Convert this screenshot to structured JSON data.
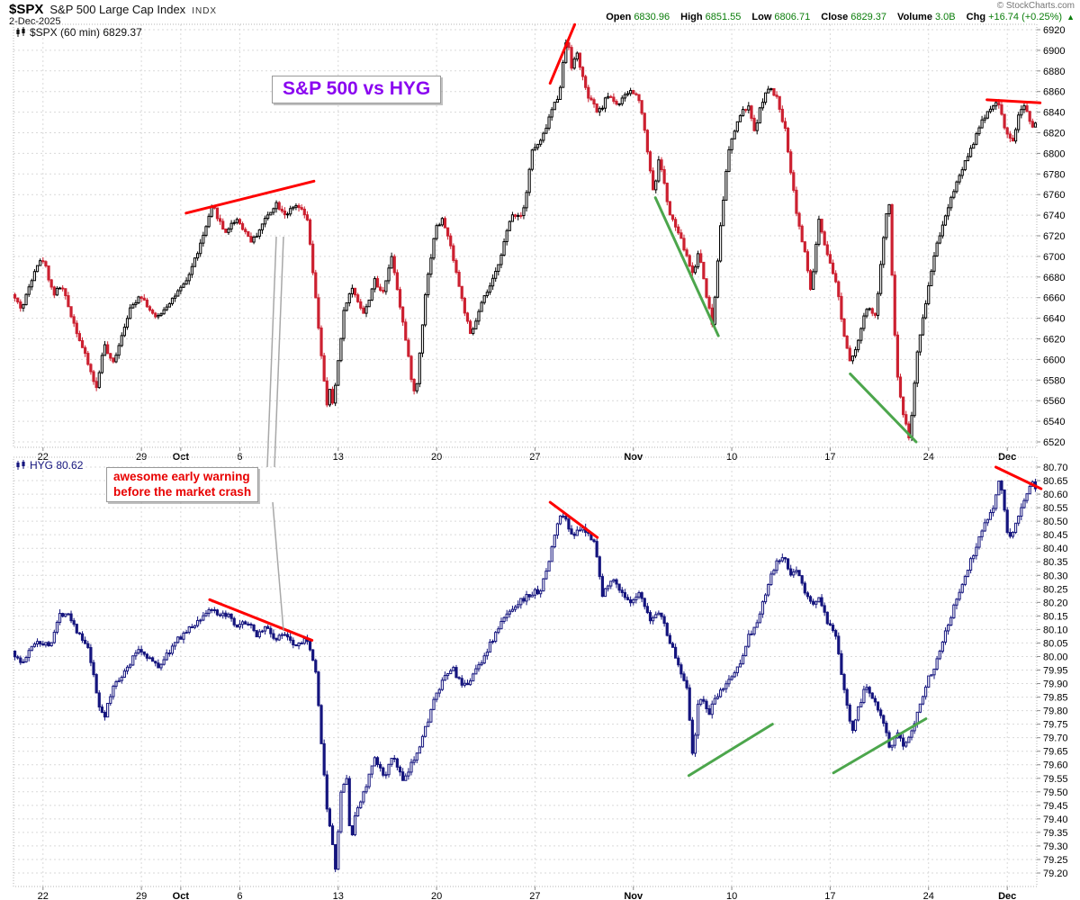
{
  "header": {
    "symbol": "$SPX",
    "name": "S&P 500 Large Cap Index",
    "exchange": "INDX",
    "date": "2-Dec-2025",
    "copyright": "© StockCharts.com",
    "quote": {
      "open_label": "Open",
      "open": "6830.96",
      "high_label": "High",
      "high": "6851.55",
      "low_label": "Low",
      "low": "6806.71",
      "close_label": "Close",
      "close": "6829.37",
      "volume_label": "Volume",
      "volume": "3.0B",
      "chg_label": "Chg",
      "chg": "+16.74 (+0.25%)",
      "arrow": "▲"
    }
  },
  "colors": {
    "spx_up": "#000000",
    "spx_down": "#cc2030",
    "hyg": "#15157e",
    "trend_red": "#fe0000",
    "trend_green": "#4ca64c",
    "grid": "#d9d9d9",
    "panel_border": "#b5b5b5",
    "axis_text": "#000000",
    "leader_gray": "#9a9a9a",
    "quote_value_green": "#0a7d0a",
    "title_purple": "#8a05f0",
    "warning_red": "#e80000"
  },
  "annotations": {
    "title_box": "S&P 500 vs HYG",
    "warning_lines": [
      "awesome early warning",
      "before the market crash"
    ],
    "leader_lines": [
      [
        307,
        263,
        297,
        519
      ],
      [
        315,
        263,
        305,
        519
      ],
      [
        303,
        558,
        315,
        701
      ]
    ]
  },
  "x_ticks": [
    {
      "day": 1,
      "label": "22",
      "bold": false
    },
    {
      "day": 6,
      "label": "29",
      "bold": false
    },
    {
      "day": 8,
      "label": "Oct",
      "bold": true
    },
    {
      "day": 11,
      "label": "6",
      "bold": false
    },
    {
      "day": 16,
      "label": "13",
      "bold": false
    },
    {
      "day": 21,
      "label": "20",
      "bold": false
    },
    {
      "day": 26,
      "label": "27",
      "bold": false
    },
    {
      "day": 31,
      "label": "Nov",
      "bold": true
    },
    {
      "day": 36,
      "label": "10",
      "bold": false
    },
    {
      "day": 41,
      "label": "17",
      "bold": false
    },
    {
      "day": 46,
      "label": "24",
      "bold": false
    },
    {
      "day": 50,
      "label": "Dec",
      "bold": true
    }
  ],
  "chart_data": [
    {
      "panel": "top",
      "type": "candlestick",
      "symbol": "$SPX",
      "label": "$SPX (60 min) 6829.37",
      "timeframe": "60 min",
      "last_close": 6829.37,
      "y_min": 6520,
      "y_max": 6920,
      "y_step": 20,
      "days_total": 52,
      "bars_per_day": 7,
      "path_day_price": [
        [
          0,
          6663
        ],
        [
          0.5,
          6649
        ],
        [
          1.2,
          6691
        ],
        [
          1.6,
          6697
        ],
        [
          2.1,
          6663
        ],
        [
          2.5,
          6672
        ],
        [
          3.2,
          6632
        ],
        [
          4.3,
          6571
        ],
        [
          4.65,
          6616
        ],
        [
          5.1,
          6594
        ],
        [
          5.9,
          6645
        ],
        [
          6.5,
          6664
        ],
        [
          7.3,
          6639
        ],
        [
          8.0,
          6656
        ],
        [
          8.8,
          6673
        ],
        [
          9.6,
          6713
        ],
        [
          10.2,
          6749
        ],
        [
          10.8,
          6723
        ],
        [
          11.4,
          6737
        ],
        [
          12.2,
          6714
        ],
        [
          12.8,
          6734
        ],
        [
          13.4,
          6752
        ],
        [
          13.9,
          6741
        ],
        [
          14.5,
          6749
        ],
        [
          15.0,
          6736
        ],
        [
          15.5,
          6645
        ],
        [
          15.99,
          6553
        ],
        [
          16.15,
          6572
        ],
        [
          16.3,
          6554
        ],
        [
          16.9,
          6653
        ],
        [
          17.3,
          6669
        ],
        [
          17.9,
          6643
        ],
        [
          18.4,
          6677
        ],
        [
          18.8,
          6663
        ],
        [
          19.3,
          6701
        ],
        [
          19.9,
          6631
        ],
        [
          20.35,
          6575
        ],
        [
          20.5,
          6562
        ],
        [
          20.99,
          6663
        ],
        [
          21.5,
          6727
        ],
        [
          21.9,
          6736
        ],
        [
          22.4,
          6701
        ],
        [
          22.8,
          6663
        ],
        [
          23.3,
          6622
        ],
        [
          23.9,
          6656
        ],
        [
          24.5,
          6679
        ],
        [
          25.4,
          6741
        ],
        [
          25.9,
          6740
        ],
        [
          26.15,
          6764
        ],
        [
          26.4,
          6802
        ],
        [
          26.9,
          6812
        ],
        [
          27.4,
          6841
        ],
        [
          27.8,
          6858
        ],
        [
          28.2,
          6916
        ],
        [
          28.45,
          6882
        ],
        [
          28.7,
          6898
        ],
        [
          29.2,
          6857
        ],
        [
          29.8,
          6839
        ],
        [
          30.3,
          6857
        ],
        [
          30.8,
          6847
        ],
        [
          31.4,
          6861
        ],
        [
          31.9,
          6853
        ],
        [
          32.3,
          6801
        ],
        [
          32.6,
          6761
        ],
        [
          32.9,
          6797
        ],
        [
          33.4,
          6741
        ],
        [
          33.9,
          6721
        ],
        [
          34.3,
          6699
        ],
        [
          34.6,
          6682
        ],
        [
          34.9,
          6706
        ],
        [
          35.3,
          6661
        ],
        [
          35.6,
          6632
        ],
        [
          35.99,
          6730
        ],
        [
          36.4,
          6801
        ],
        [
          36.9,
          6834
        ],
        [
          37.4,
          6847
        ],
        [
          37.7,
          6821
        ],
        [
          38.2,
          6856
        ],
        [
          38.5,
          6863
        ],
        [
          38.9,
          6852
        ],
        [
          39.3,
          6821
        ],
        [
          39.9,
          6738
        ],
        [
          40.3,
          6701
        ],
        [
          40.6,
          6665
        ],
        [
          40.99,
          6735
        ],
        [
          41.4,
          6701
        ],
        [
          41.9,
          6673
        ],
        [
          42.3,
          6621
        ],
        [
          42.6,
          6599
        ],
        [
          42.99,
          6618
        ],
        [
          43.4,
          6649
        ],
        [
          43.9,
          6643
        ],
        [
          44.3,
          6721
        ],
        [
          44.55,
          6763
        ],
        [
          44.8,
          6642
        ],
        [
          44.99,
          6583
        ],
        [
          45.3,
          6546
        ],
        [
          45.6,
          6523
        ],
        [
          45.99,
          6604
        ],
        [
          46.4,
          6653
        ],
        [
          46.9,
          6706
        ],
        [
          47.4,
          6739
        ],
        [
          47.9,
          6767
        ],
        [
          48.4,
          6791
        ],
        [
          48.9,
          6813
        ],
        [
          49.4,
          6836
        ],
        [
          49.9,
          6849
        ],
        [
          50.15,
          6847
        ],
        [
          50.5,
          6821
        ],
        [
          50.8,
          6809
        ],
        [
          51.2,
          6839
        ],
        [
          51.5,
          6846
        ],
        [
          51.8,
          6826
        ],
        [
          52.0,
          6829.37
        ]
      ],
      "trendlines": [
        {
          "d1": 8.7,
          "p1": 6742,
          "d2": 15.2,
          "p2": 6773,
          "c": "red"
        },
        {
          "d1": 27.2,
          "p1": 6868,
          "d2": 28.45,
          "p2": 6925,
          "c": "red"
        },
        {
          "d1": 49.4,
          "p1": 6852,
          "d2": 52.1,
          "p2": 6849,
          "c": "red"
        },
        {
          "d1": 32.55,
          "p1": 6757,
          "d2": 35.75,
          "p2": 6623,
          "c": "green"
        },
        {
          "d1": 42.45,
          "p1": 6586,
          "d2": 45.8,
          "p2": 6520,
          "c": "green"
        }
      ]
    },
    {
      "panel": "bottom",
      "type": "candlestick",
      "symbol": "HYG",
      "label": "HYG 80.62",
      "last_close": 80.62,
      "y_min": 79.2,
      "y_max": 80.7,
      "y_step": 0.05,
      "days_total": 52,
      "bars_per_day": 7,
      "path_day_price": [
        [
          0,
          80.02
        ],
        [
          0.5,
          79.97
        ],
        [
          1.2,
          80.06
        ],
        [
          1.9,
          80.04
        ],
        [
          2.4,
          80.15
        ],
        [
          2.8,
          80.17
        ],
        [
          3.4,
          80.08
        ],
        [
          3.9,
          80.02
        ],
        [
          4.4,
          79.82
        ],
        [
          4.7,
          79.78
        ],
        [
          5.2,
          79.9
        ],
        [
          5.9,
          79.96
        ],
        [
          6.4,
          80.03
        ],
        [
          6.9,
          80.0
        ],
        [
          7.4,
          79.96
        ],
        [
          7.9,
          80.01
        ],
        [
          8.5,
          80.07
        ],
        [
          9.3,
          80.12
        ],
        [
          10.1,
          80.18
        ],
        [
          10.5,
          80.14
        ],
        [
          10.9,
          80.16
        ],
        [
          11.4,
          80.1
        ],
        [
          11.9,
          80.13
        ],
        [
          12.4,
          80.08
        ],
        [
          12.9,
          80.11
        ],
        [
          13.4,
          80.06
        ],
        [
          13.9,
          80.09
        ],
        [
          14.4,
          80.04
        ],
        [
          14.9,
          80.07
        ],
        [
          15.4,
          79.96
        ],
        [
          15.99,
          79.45
        ],
        [
          16.2,
          79.34
        ],
        [
          16.45,
          79.21
        ],
        [
          16.7,
          79.49
        ],
        [
          16.99,
          79.56
        ],
        [
          17.2,
          79.31
        ],
        [
          17.5,
          79.43
        ],
        [
          17.99,
          79.52
        ],
        [
          18.4,
          79.62
        ],
        [
          18.9,
          79.56
        ],
        [
          19.4,
          79.63
        ],
        [
          19.9,
          79.53
        ],
        [
          20.4,
          79.62
        ],
        [
          20.9,
          79.71
        ],
        [
          21.4,
          79.83
        ],
        [
          21.9,
          79.91
        ],
        [
          22.4,
          79.96
        ],
        [
          22.9,
          79.88
        ],
        [
          23.4,
          79.93
        ],
        [
          23.9,
          79.99
        ],
        [
          24.4,
          80.06
        ],
        [
          24.9,
          80.13
        ],
        [
          25.4,
          80.18
        ],
        [
          25.9,
          80.21
        ],
        [
          26.4,
          80.23
        ],
        [
          26.9,
          80.25
        ],
        [
          27.3,
          80.36
        ],
        [
          27.7,
          80.49
        ],
        [
          27.99,
          80.53
        ],
        [
          28.3,
          80.47
        ],
        [
          28.6,
          80.45
        ],
        [
          28.9,
          80.47
        ],
        [
          29.3,
          80.45
        ],
        [
          29.6,
          80.43
        ],
        [
          29.99,
          80.22
        ],
        [
          30.4,
          80.29
        ],
        [
          30.9,
          80.25
        ],
        [
          31.4,
          80.19
        ],
        [
          31.9,
          80.23
        ],
        [
          32.4,
          80.13
        ],
        [
          32.9,
          80.17
        ],
        [
          33.4,
          80.06
        ],
        [
          33.9,
          79.96
        ],
        [
          34.3,
          79.89
        ],
        [
          34.6,
          79.61
        ],
        [
          34.9,
          79.86
        ],
        [
          35.4,
          79.79
        ],
        [
          35.9,
          79.86
        ],
        [
          36.4,
          79.91
        ],
        [
          36.9,
          79.96
        ],
        [
          37.4,
          80.07
        ],
        [
          37.9,
          80.13
        ],
        [
          38.4,
          80.26
        ],
        [
          38.8,
          80.34
        ],
        [
          39.2,
          80.37
        ],
        [
          39.6,
          80.29
        ],
        [
          39.9,
          80.33
        ],
        [
          40.3,
          80.23
        ],
        [
          40.7,
          80.19
        ],
        [
          40.99,
          80.22
        ],
        [
          41.4,
          80.13
        ],
        [
          41.9,
          80.06
        ],
        [
          42.3,
          79.86
        ],
        [
          42.7,
          79.73
        ],
        [
          42.99,
          79.81
        ],
        [
          43.4,
          79.89
        ],
        [
          43.9,
          79.83
        ],
        [
          44.3,
          79.76
        ],
        [
          44.6,
          79.65
        ],
        [
          44.99,
          79.71
        ],
        [
          45.3,
          79.67
        ],
        [
          45.7,
          79.73
        ],
        [
          45.99,
          79.79
        ],
        [
          46.4,
          79.89
        ],
        [
          46.9,
          79.97
        ],
        [
          47.4,
          80.09
        ],
        [
          47.9,
          80.19
        ],
        [
          48.4,
          80.29
        ],
        [
          48.9,
          80.39
        ],
        [
          49.4,
          80.49
        ],
        [
          49.9,
          80.56
        ],
        [
          50.15,
          80.66
        ],
        [
          50.35,
          80.59
        ],
        [
          50.55,
          80.45
        ],
        [
          50.75,
          80.43
        ],
        [
          51.0,
          80.49
        ],
        [
          51.3,
          80.56
        ],
        [
          51.6,
          80.61
        ],
        [
          51.9,
          80.65
        ],
        [
          52.0,
          80.62
        ]
      ],
      "trendlines": [
        {
          "d1": 9.9,
          "p1": 80.21,
          "d2": 15.1,
          "p2": 80.06,
          "c": "red"
        },
        {
          "d1": 27.2,
          "p1": 80.57,
          "d2": 29.6,
          "p2": 80.44,
          "c": "red"
        },
        {
          "d1": 49.85,
          "p1": 80.7,
          "d2": 52.15,
          "p2": 80.62,
          "c": "red"
        },
        {
          "d1": 34.25,
          "p1": 79.56,
          "d2": 38.5,
          "p2": 79.75,
          "c": "green"
        },
        {
          "d1": 41.6,
          "p1": 79.57,
          "d2": 46.3,
          "p2": 79.77,
          "c": "green"
        }
      ]
    }
  ]
}
